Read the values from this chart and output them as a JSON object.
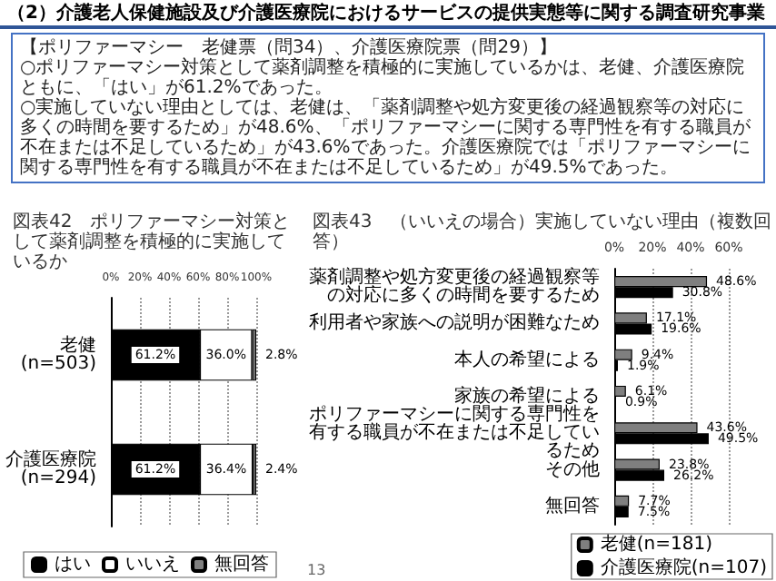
{
  "chart_data": [
    {
      "type": "other",
      "title": "（2）介護老人保健施設及び介護医療院におけるサービスの提供実態等に関する調査研究事業",
      "annotations": [
        "【ポリファーマシー　老健票（問34）、介護医療院票（問29）】",
        "○ポリファーマシー対策として薬剤調整を積極的に実施しているかは、老健、介護医療院ともに、「はい」が61.2%であった。",
        "○実施していない理由としては、老健は、「薬剤調整や処方変更後の経過観察等の対応に多くの時間を要するため」が48.6%、「ポリファーマシーに関する専門性を有する職員が不在または不足しているため」が43.6%であった。介護医療院では「ポリファーマシーに関する専門性を有する職員が不在または不足しているため」が49.5%であった。"
      ]
    },
    {
      "type": "bar",
      "title": "図表42　ポリファーマシー対策として薬剤調整を積極的に実施しているか",
      "orientation": "horizontal",
      "stacked": true,
      "categories": [
        "老健(n=503)",
        "介護医療院(n=294)"
      ],
      "series": [
        {
          "name": "はい",
          "color": "#000000",
          "values": [
            61.2,
            61.2
          ],
          "value_labels": [
            "61.2%",
            "61.2%"
          ]
        },
        {
          "name": "いいえ",
          "color": "#ffffff",
          "values": [
            36.0,
            36.4
          ],
          "value_labels": [
            "36.0%",
            "36.4%"
          ]
        },
        {
          "name": "無回答",
          "color": "#808080",
          "values": [
            2.8,
            2.4
          ],
          "value_labels": [
            "2.8%",
            "2.4%"
          ]
        }
      ],
      "xlim": [
        0,
        100
      ],
      "xticks": [
        {
          "value": 0,
          "label": "0%"
        },
        {
          "value": 20,
          "label": "20%"
        },
        {
          "value": 40,
          "label": "40%"
        },
        {
          "value": 60,
          "label": "60%"
        },
        {
          "value": 80,
          "label": "80%"
        },
        {
          "value": 100,
          "label": "100%"
        }
      ],
      "grid": "x",
      "legend": "bottom"
    },
    {
      "type": "bar",
      "title": "図表43　（いいえの場合）実施していない理由（複数回答）",
      "orientation": "horizontal",
      "categories": [
        "薬剤調整や処方変更後の経過観察等の対応に多くの時間を要するため",
        "利用者や家族への説明が困難なため",
        "本人の希望による",
        "家族の希望による",
        "ポリファーマシーに関する専門性を有する職員が不在または不足しているため",
        "その他",
        "無回答"
      ],
      "series": [
        {
          "name": "老健(n=181)",
          "color": "#7f7f7f",
          "values": [
            48.6,
            17.1,
            9.4,
            6.1,
            43.6,
            23.8,
            7.7
          ],
          "value_labels": [
            "48.6%",
            "17.1%",
            "9.4%",
            "6.1%",
            "43.6%",
            "23.8%",
            "7.7%"
          ]
        },
        {
          "name": "介護医療院(n=107)",
          "color": "#000000",
          "values": [
            30.8,
            19.6,
            1.9,
            0.9,
            49.5,
            26.2,
            7.5
          ],
          "value_labels": [
            "30.8%",
            "19.6%",
            "1.9%",
            "0.9%",
            "49.5%",
            "26.2%",
            "7.5%"
          ]
        }
      ],
      "xlim": [
        0,
        60
      ],
      "xticks": [
        {
          "value": 0,
          "label": "0%"
        },
        {
          "value": 20,
          "label": "20%"
        },
        {
          "value": 40,
          "label": "40%"
        },
        {
          "value": 60,
          "label": "60%"
        }
      ],
      "grid": "x",
      "legend": "bottom right",
      "annotations": [
        "13"
      ]
    }
  ]
}
